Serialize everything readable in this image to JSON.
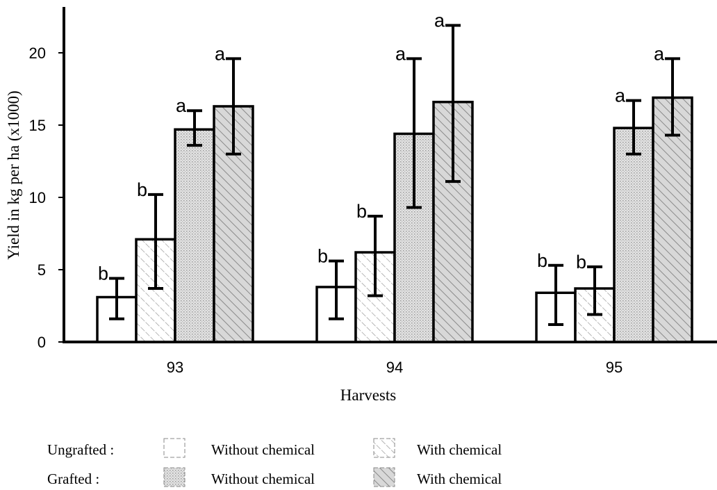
{
  "chart_data": {
    "type": "bar",
    "xlabel": "Harvests",
    "ylabel": "Yield in kg per ha (x1000)",
    "ylim": [
      0,
      23
    ],
    "yticks": [
      0,
      5,
      10,
      15,
      20
    ],
    "grid": false,
    "categories": [
      "93",
      "94",
      "95"
    ],
    "series": [
      {
        "name": "Ungrafted: Without chemical",
        "pattern": "none",
        "fill": "#ffffff",
        "values": [
          3.1,
          3.8,
          3.4
        ],
        "err_low": [
          1.6,
          1.6,
          1.2
        ],
        "err_high": [
          4.4,
          5.6,
          5.3
        ],
        "labels": [
          "b",
          "b",
          "b"
        ]
      },
      {
        "name": "Ungrafted: With chemical",
        "pattern": "hatch-light",
        "fill": "#ffffff",
        "values": [
          7.1,
          6.2,
          3.7
        ],
        "err_low": [
          3.7,
          3.2,
          1.9
        ],
        "err_high": [
          10.2,
          8.7,
          5.2
        ],
        "labels": [
          "b",
          "b",
          "b"
        ]
      },
      {
        "name": "Grafted: Without chemical",
        "pattern": "dots",
        "fill": "#dcdcdc",
        "values": [
          14.7,
          14.4,
          14.8
        ],
        "err_low": [
          13.6,
          9.3,
          13.0
        ],
        "err_high": [
          16.0,
          19.6,
          16.7
        ],
        "labels": [
          "a",
          "a",
          "a"
        ]
      },
      {
        "name": "Grafted: With chemical",
        "pattern": "hatch-dense",
        "fill": "#d6d6d6",
        "values": [
          16.3,
          16.6,
          16.9
        ],
        "err_low": [
          13.0,
          11.1,
          14.3
        ],
        "err_high": [
          19.6,
          21.9,
          19.6
        ],
        "labels": [
          "a",
          "a",
          "a"
        ]
      }
    ]
  },
  "legend": {
    "rows": [
      {
        "group": "Ungrafted :",
        "without": "Without chemical",
        "with": "With chemical"
      },
      {
        "group": "Grafted :",
        "without": "Without chemical",
        "with": "With chemical"
      }
    ]
  }
}
